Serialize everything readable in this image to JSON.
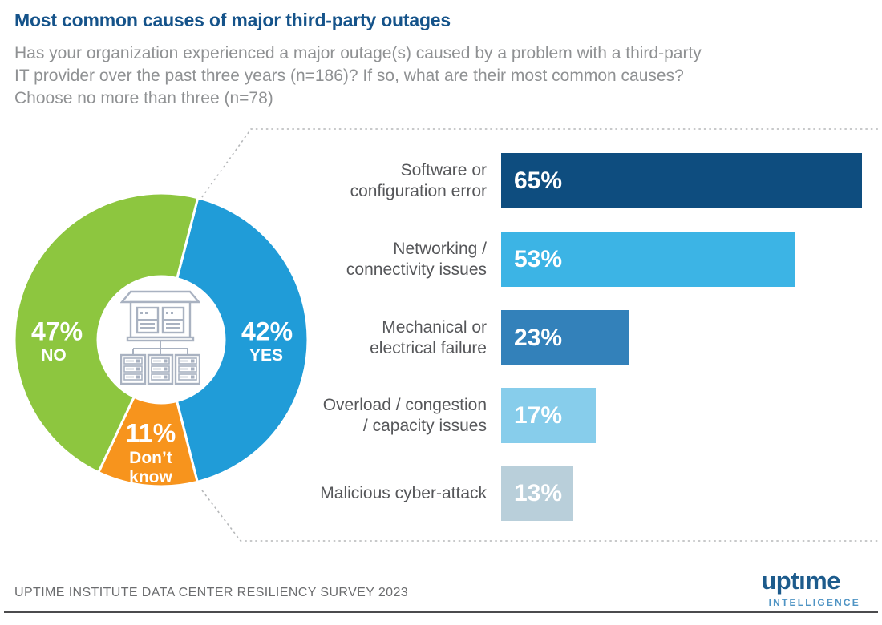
{
  "header": {
    "title": "Most common causes of major third-party outages",
    "subtitle_lines": [
      "Has your organization experienced a major outage(s) caused by a problem with a third-party",
      "IT provider over the past three years (n=186)? If so, what are their most common causes?",
      "Choose no more than three (n=78)"
    ]
  },
  "donut": {
    "start_angle_deg": 14.5,
    "segments": [
      {
        "name": "yes",
        "pct": 42,
        "display": "42%",
        "label_lines": [
          "YES"
        ],
        "color": "#209cd8"
      },
      {
        "name": "dont_know",
        "pct": 11,
        "display": "11%",
        "label_lines": [
          "Don’t",
          "know"
        ],
        "color": "#f7941d"
      },
      {
        "name": "no",
        "pct": 47,
        "display": "47%",
        "label_lines": [
          "NO"
        ],
        "color": "#8dc63f"
      }
    ],
    "center_icon": "datacenter-icon"
  },
  "bars": {
    "items": [
      {
        "label_lines": [
          "Software or",
          "configuration error"
        ],
        "pct": 65,
        "display": "65%",
        "color": "#0e4d7f"
      },
      {
        "label_lines": [
          "Networking /",
          "connectivity issues"
        ],
        "pct": 53,
        "display": "53%",
        "color": "#3cb4e5"
      },
      {
        "label_lines": [
          "Mechanical or",
          "electrical failure"
        ],
        "pct": 23,
        "display": "23%",
        "color": "#3381ba"
      },
      {
        "label_lines": [
          "Overload / congestion",
          "/ capacity issues"
        ],
        "pct": 17,
        "display": "17%",
        "color": "#87cdeb"
      },
      {
        "label_lines": [
          "Malicious cyber-attack"
        ],
        "pct": 13,
        "display": "13%",
        "color": "#b9cfda"
      }
    ]
  },
  "footer": {
    "survey": "UPTIME INSTITUTE DATA CENTER RESILIENCY SURVEY 2023",
    "logo": {
      "wordmark": "uptıme",
      "tagline": "INTELLIGENCE"
    }
  },
  "colors": {
    "title": "#15538a",
    "subtitle": "#8f9193",
    "label_gray": "#56575a",
    "dotted_line": "#b5b7b9",
    "icon_gray": "#a9b2c1"
  },
  "chart_data": [
    {
      "type": "pie",
      "subtype": "donut",
      "title": "Has your organization experienced a major outage(s) caused by a problem with a third-party IT provider over the past three years (n=186)?",
      "categories": [
        "YES",
        "Don't know",
        "NO"
      ],
      "values": [
        42,
        11,
        47
      ],
      "unit": "%",
      "colors": [
        "#209cd8",
        "#f7941d",
        "#8dc63f"
      ],
      "labels_position": "inside",
      "legend_position": "none"
    },
    {
      "type": "bar",
      "orientation": "horizontal",
      "title": "If so, what are their most common causes? Choose no more than three (n=78)",
      "categories": [
        "Software or configuration error",
        "Networking / connectivity issues",
        "Mechanical or electrical failure",
        "Overload / congestion / capacity issues",
        "Malicious cyber-attack"
      ],
      "values": [
        65,
        53,
        23,
        17,
        13
      ],
      "unit": "%",
      "colors": [
        "#0e4d7f",
        "#3cb4e5",
        "#3381ba",
        "#87cdeb",
        "#b9cfda"
      ],
      "xlim": [
        0,
        70
      ],
      "grid": false,
      "data_labels": "inside-start"
    }
  ]
}
